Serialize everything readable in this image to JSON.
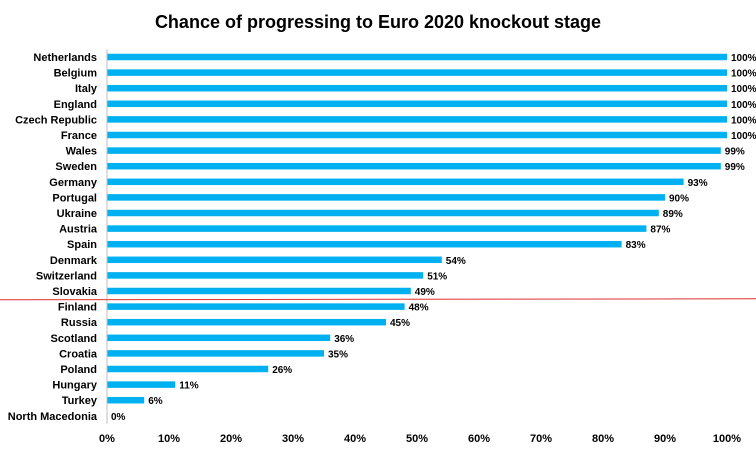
{
  "chart_data": {
    "type": "bar",
    "orientation": "horizontal",
    "title": "Chance of progressing to Euro 2020 knockout stage",
    "categories": [
      "Netherlands",
      "Belgium",
      "Italy",
      "England",
      "Czech Republic",
      "France",
      "Wales",
      "Sweden",
      "Germany",
      "Portugal",
      "Ukraine",
      "Austria",
      "Spain",
      "Denmark",
      "Switzerland",
      "Slovakia",
      "Finland",
      "Russia",
      "Scotland",
      "Croatia",
      "Poland",
      "Hungary",
      "Turkey",
      "North Macedonia"
    ],
    "values": [
      100,
      100,
      100,
      100,
      100,
      100,
      99,
      99,
      93,
      90,
      89,
      87,
      83,
      54,
      51,
      49,
      48,
      45,
      36,
      35,
      26,
      11,
      6,
      0
    ],
    "value_labels": [
      "100%",
      "100%",
      "100%",
      "100%",
      "100%",
      "100%",
      "99%",
      "99%",
      "93%",
      "90%",
      "89%",
      "87%",
      "83%",
      "54%",
      "51%",
      "49%",
      "48%",
      "45%",
      "36%",
      "35%",
      "26%",
      "11%",
      "6%",
      "0%"
    ],
    "x_ticks": [
      "0%",
      "10%",
      "20%",
      "30%",
      "40%",
      "50%",
      "60%",
      "70%",
      "80%",
      "90%",
      "100%"
    ],
    "xlim": [
      0,
      100
    ],
    "xlabel": "",
    "ylabel": "",
    "grid": false,
    "legend": "none",
    "cutoff_after_category": "Slovakia",
    "colors": {
      "bar": "#00b0f0",
      "cutoff_line": "#e03030",
      "axis": "#bfbfbf",
      "text": "#000000"
    }
  }
}
